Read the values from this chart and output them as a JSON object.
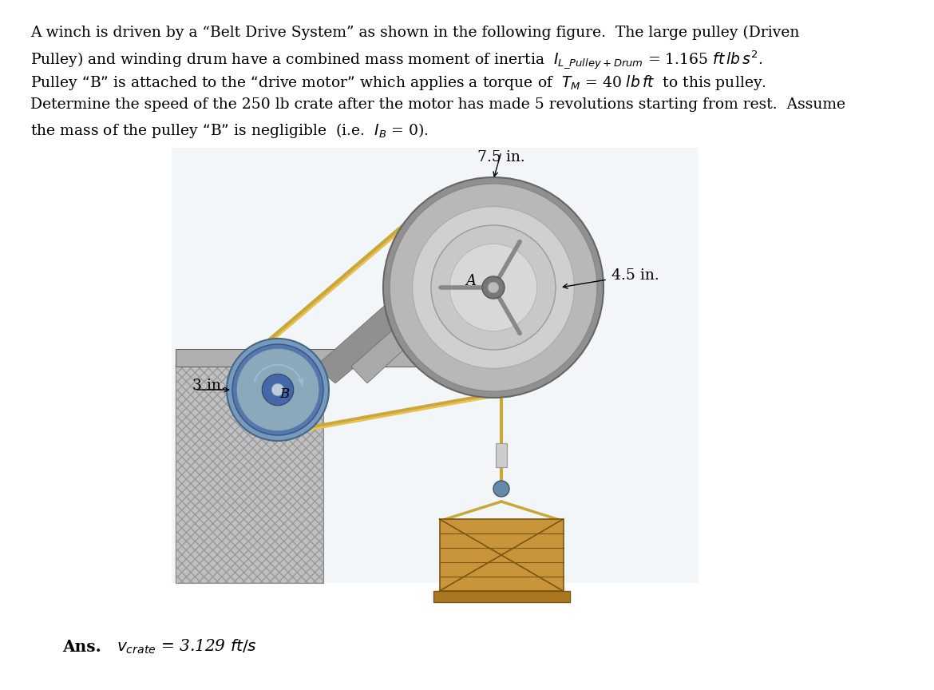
{
  "bg_color": "#ffffff",
  "text_color": "#1a1a1a",
  "line1": "A winch is driven by a “Belt Drive System” as shown in the following figure.  The large pulley (Driven",
  "line2_plain": "Pulley) and winding drum have a combined mass moment of inertia  ",
  "line2_math": "$I_{L\\_Pulley+Drum}$",
  "line2_end": " = 1.165 $ft\\,lb\\,s^2$.",
  "line3_plain": "Pulley “B” is attached to the “drive motor” which applies a torque of  ",
  "line3_math": "$T_M$",
  "line3_end": " = 40 $lb\\,ft$  to this pulley.",
  "line4": "Determine the speed of the 250 lb crate after the motor has made 5 revolutions starting from rest.  Assume",
  "line5": "the mass of the pulley “B” is negligible  (i.e.  $I_B$ = 0).",
  "ans_bold": "Ans.",
  "ans_math": "$v_{crate}$ = 3.129 $ft/s$",
  "label_3in": "3 in.",
  "label_75in": "7.5 in.",
  "label_45in": "4.5 in.",
  "wall_color": "#c0c0c0",
  "wall_hatch_color": "#999999",
  "platform_color": "#b0b0b0",
  "belt_color": "#c8a83a",
  "rope_color": "#c8a83a",
  "pulley_b_outer": "#6688bb",
  "pulley_b_mid": "#8aabcc",
  "pulley_b_inner_dark": "#4a6a99",
  "pulley_b_hub": "#ccddee",
  "pulley_a_outer_edge": "#888888",
  "pulley_a_body": "#b8b8b8",
  "pulley_a_inner_ring": "#d8d8d8",
  "pulley_a_hub": "#c0c0c0",
  "bracket_color": "#909090",
  "crate_color": "#c8953a",
  "crate_edge": "#7a5510",
  "crate_base": "#aa7820"
}
